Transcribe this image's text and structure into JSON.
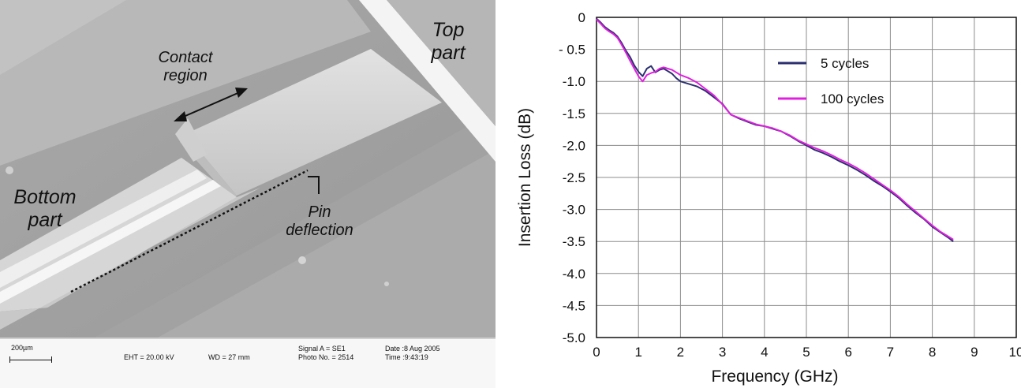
{
  "sem": {
    "labels": {
      "top_part": "Top\npart",
      "bottom_part": "Bottom\npart",
      "contact_region": "Contact\nregion",
      "pin_deflection": "Pin\ndeflection"
    },
    "info_bar": {
      "scale": "200µm",
      "eht": "EHT = 20.00 kV",
      "wd": "WD =   27 mm",
      "signal": "Signal A = SE1",
      "photo": "Photo No. = 2514",
      "date": "Date :8 Aug 2005",
      "time": "Time :9:43:19"
    }
  },
  "chart_data": {
    "type": "line",
    "xlabel": "Frequency (GHz)",
    "ylabel": "Insertion Loss (dB)",
    "xlim": [
      0,
      10
    ],
    "ylim": [
      -5.0,
      0
    ],
    "x_ticks": [
      0,
      1,
      2,
      3,
      4,
      5,
      6,
      7,
      8,
      9,
      10
    ],
    "x_tick_labels": [
      "0",
      "1",
      "2",
      "3",
      "4",
      "5",
      "6",
      "7",
      "8",
      "9",
      "10"
    ],
    "y_ticks": [
      0,
      -0.5,
      -1.0,
      -1.5,
      -2.0,
      -2.5,
      -3.0,
      -3.5,
      -4.0,
      -4.5,
      -5.0
    ],
    "y_tick_labels": [
      "0",
      "- 0.5",
      "-1.0",
      "-1.5",
      "-2.0",
      "-2.5",
      "-3.0",
      "-3.5",
      "-4.0",
      "-4.5",
      "-5.0"
    ],
    "grid": true,
    "legend_position": "top-center",
    "series": [
      {
        "name": "5 cycles",
        "color": "#2b2f6e",
        "x": [
          0,
          0.1,
          0.2,
          0.3,
          0.4,
          0.5,
          0.6,
          0.7,
          0.8,
          0.9,
          1.0,
          1.1,
          1.2,
          1.3,
          1.4,
          1.5,
          1.6,
          1.7,
          1.8,
          1.9,
          2.0,
          2.2,
          2.4,
          2.6,
          2.8,
          3.0,
          3.2,
          3.4,
          3.6,
          3.8,
          4.0,
          4.2,
          4.4,
          4.6,
          4.8,
          5.0,
          5.2,
          5.4,
          5.6,
          5.8,
          6.0,
          6.2,
          6.4,
          6.6,
          6.8,
          7.0,
          7.2,
          7.4,
          7.6,
          7.8,
          8.0,
          8.2,
          8.4,
          8.5
        ],
        "y": [
          -0.02,
          -0.08,
          -0.15,
          -0.2,
          -0.24,
          -0.3,
          -0.4,
          -0.52,
          -0.62,
          -0.75,
          -0.85,
          -0.92,
          -0.8,
          -0.76,
          -0.86,
          -0.82,
          -0.8,
          -0.84,
          -0.88,
          -0.95,
          -1.0,
          -1.04,
          -1.08,
          -1.15,
          -1.25,
          -1.35,
          -1.52,
          -1.58,
          -1.63,
          -1.68,
          -1.7,
          -1.74,
          -1.78,
          -1.85,
          -1.93,
          -2.0,
          -2.07,
          -2.12,
          -2.18,
          -2.25,
          -2.31,
          -2.38,
          -2.46,
          -2.55,
          -2.63,
          -2.72,
          -2.82,
          -2.94,
          -3.05,
          -3.15,
          -3.27,
          -3.36,
          -3.45,
          -3.5
        ]
      },
      {
        "name": "100 cycles",
        "color": "#e020e0",
        "x": [
          0,
          0.1,
          0.2,
          0.3,
          0.4,
          0.5,
          0.6,
          0.7,
          0.8,
          0.9,
          1.0,
          1.1,
          1.2,
          1.3,
          1.4,
          1.5,
          1.6,
          1.7,
          1.8,
          1.9,
          2.0,
          2.2,
          2.4,
          2.6,
          2.8,
          3.0,
          3.2,
          3.4,
          3.6,
          3.8,
          4.0,
          4.2,
          4.4,
          4.6,
          4.8,
          5.0,
          5.2,
          5.4,
          5.6,
          5.8,
          6.0,
          6.2,
          6.4,
          6.6,
          6.8,
          7.0,
          7.2,
          7.4,
          7.6,
          7.8,
          8.0,
          8.2,
          8.4,
          8.5
        ],
        "y": [
          -0.03,
          -0.1,
          -0.17,
          -0.22,
          -0.26,
          -0.32,
          -0.43,
          -0.55,
          -0.68,
          -0.8,
          -0.92,
          -1.0,
          -0.9,
          -0.87,
          -0.85,
          -0.8,
          -0.78,
          -0.8,
          -0.82,
          -0.86,
          -0.9,
          -0.95,
          -1.02,
          -1.12,
          -1.22,
          -1.36,
          -1.52,
          -1.57,
          -1.62,
          -1.67,
          -1.7,
          -1.73,
          -1.78,
          -1.84,
          -1.92,
          -1.98,
          -2.04,
          -2.09,
          -2.15,
          -2.22,
          -2.28,
          -2.35,
          -2.43,
          -2.52,
          -2.61,
          -2.7,
          -2.8,
          -2.92,
          -3.03,
          -3.14,
          -3.25,
          -3.35,
          -3.43,
          -3.47
        ]
      }
    ]
  }
}
